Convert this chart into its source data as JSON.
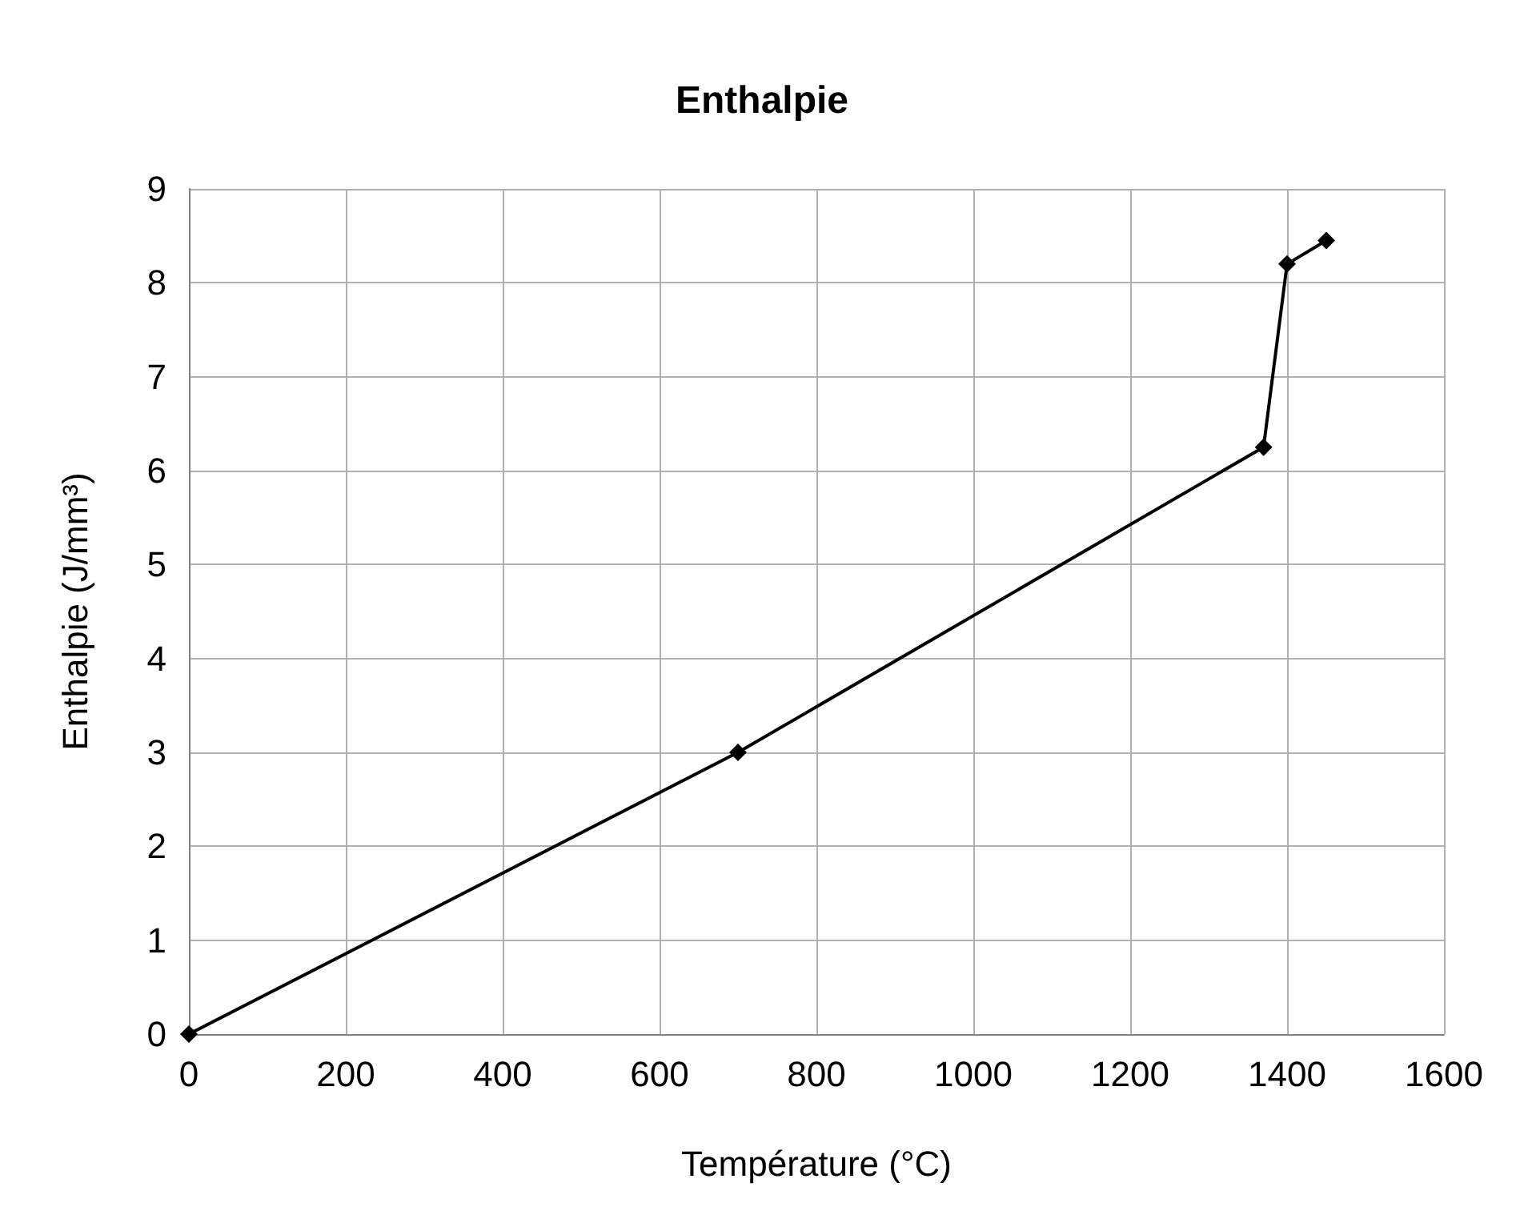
{
  "chart_data": {
    "type": "line",
    "title": "Enthalpie",
    "xlabel": "Température (°C)",
    "ylabel": "Enthalpie (J/mm³)",
    "x": [
      0,
      700,
      1370,
      1400,
      1450
    ],
    "series": [
      {
        "color": "#000000",
        "values": [
          0,
          3,
          6.25,
          8.2,
          8.45
        ]
      }
    ],
    "xlim": [
      0,
      1600
    ],
    "xticks": [
      0,
      200,
      400,
      600,
      800,
      1000,
      1200,
      1400,
      1600
    ],
    "ylim": [
      0,
      9
    ],
    "yticks": [
      0,
      1,
      2,
      3,
      4,
      5,
      6,
      7,
      8,
      9
    ],
    "grid": true,
    "marker": "diamond",
    "line_style": "solid"
  }
}
